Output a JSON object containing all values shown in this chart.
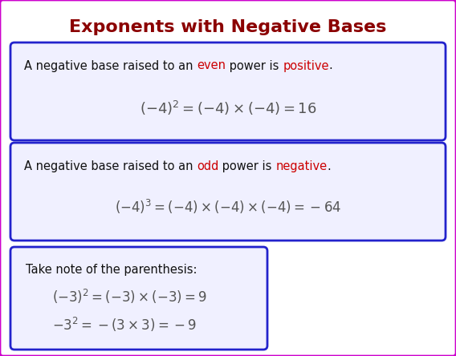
{
  "title": "Exponents with Negative Bases",
  "title_color": "#8B0000",
  "title_fontsize": 16,
  "bg_color": "#FFFFFF",
  "outer_border_color": "#CC00CC",
  "box_border_color": "#2222CC",
  "colored_word_color": "#CC0000",
  "formula_color": "#555555",
  "box_bg": "#F0F0FF",
  "text_color": "#111111",
  "seg1": [
    [
      "A negative base raised to an ",
      "#111111"
    ],
    [
      "even",
      "#CC0000"
    ],
    [
      " power is ",
      "#111111"
    ],
    [
      "positive",
      "#CC0000"
    ],
    [
      ".",
      "#111111"
    ]
  ],
  "seg2": [
    [
      "A negative base raised to an ",
      "#111111"
    ],
    [
      "odd",
      "#CC0000"
    ],
    [
      " power is ",
      "#111111"
    ],
    [
      "negative",
      "#CC0000"
    ],
    [
      ".",
      "#111111"
    ]
  ],
  "box3_header": "Take note of the parenthesis:",
  "formula1": "$(-4)^{2}=(-4)\\times(-4)=16$",
  "formula2": "$(-4)^{3}=(-4)\\times(-4)\\times(-4)=-64$",
  "formula3": "$(-3)^{2}=(-3)\\times(-3)=9$",
  "formula4": "$-3^{2}=-(3\\times3)=-9$",
  "text_fontsize": 10.5,
  "formula_fontsize": 13,
  "formula_small_fontsize": 12
}
